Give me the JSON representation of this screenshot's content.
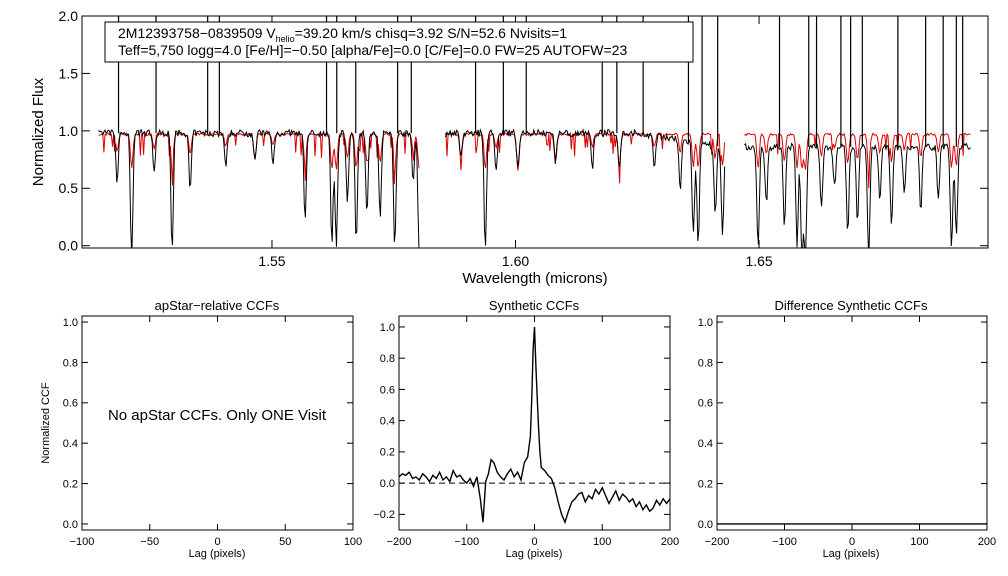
{
  "chart_data": [
    {
      "type": "line",
      "id": "spectrum",
      "xlabel": "Wavelength (microns)",
      "ylabel": "Normalized Flux",
      "xlim": [
        1.511,
        1.697
      ],
      "ylim": [
        -0.02,
        2.0
      ],
      "xticks": [
        1.55,
        1.6,
        1.65
      ],
      "xtick_labels": [
        "1.55",
        "1.60",
        "1.65"
      ],
      "yticks": [
        0.0,
        0.5,
        1.0,
        1.5,
        2.0
      ],
      "ytick_labels": [
        "0.0",
        "0.5",
        "1.0",
        "1.5",
        "2.0"
      ],
      "annotation": {
        "line1_prefix": "2M12393758−0839509  V",
        "line1_sub": "helio",
        "line1_rest": "=39.20 km/s  chisq=3.92  S/N=52.6  Nvisits=1",
        "line2": "Teff=5,750 logg=4.0 [Fe/H]=−0.50 [alpha/Fe]=0.0 [C/Fe]=0.0 FW=25 AUTOFW=23"
      },
      "segments": [
        {
          "start": 1.5144,
          "end": 1.5804
        },
        {
          "start": 1.5855,
          "end": 1.643
        },
        {
          "start": 1.647,
          "end": 1.6935
        }
      ],
      "observed_drift": [
        {
          "x": 1.625,
          "y": 0.0
        },
        {
          "x": 1.633,
          "y": -0.05
        },
        {
          "x": 1.638,
          "y": -0.1
        },
        {
          "x": 1.643,
          "y": -0.12
        }
      ],
      "spikes_up": [
        1.5185,
        1.5262,
        1.5368,
        1.5392,
        1.5612,
        1.5633,
        1.5672,
        1.5758,
        1.5786,
        1.5918,
        1.5975,
        1.6022,
        1.6178,
        1.6208,
        1.6262,
        1.6355,
        1.6383,
        1.6415,
        1.6542,
        1.6602,
        1.6618,
        1.6668,
        1.6688,
        1.6712,
        1.6785,
        1.6842,
        1.6878,
        1.6905,
        1.6918
      ],
      "absorption_lines": [
        {
          "x": 1.5182,
          "depth": 0.42,
          "c": "k"
        },
        {
          "x": 1.5212,
          "depth": 1.1,
          "c": "k"
        },
        {
          "x": 1.5258,
          "depth": 0.35,
          "c": "k"
        },
        {
          "x": 1.5295,
          "depth": 1.0,
          "c": "k"
        },
        {
          "x": 1.5332,
          "depth": 0.5,
          "c": "k"
        },
        {
          "x": 1.5405,
          "depth": 0.3,
          "c": "k"
        },
        {
          "x": 1.5465,
          "depth": 0.22,
          "c": "r"
        },
        {
          "x": 1.5502,
          "depth": 0.28,
          "c": "k"
        },
        {
          "x": 1.5568,
          "depth": 0.75,
          "c": "k"
        },
        {
          "x": 1.5623,
          "depth": 1.0,
          "c": "k"
        },
        {
          "x": 1.5632,
          "depth": 1.0,
          "c": "k"
        },
        {
          "x": 1.5655,
          "depth": 0.6,
          "c": "k"
        },
        {
          "x": 1.5673,
          "depth": 0.95,
          "c": "k"
        },
        {
          "x": 1.5695,
          "depth": 0.7,
          "c": "k"
        },
        {
          "x": 1.5722,
          "depth": 0.72,
          "c": "k"
        },
        {
          "x": 1.5752,
          "depth": 1.0,
          "c": "k"
        },
        {
          "x": 1.579,
          "depth": 0.4,
          "c": "k"
        },
        {
          "x": 1.5802,
          "depth": 1.0,
          "c": "k"
        },
        {
          "x": 1.5888,
          "depth": 0.22,
          "c": "r"
        },
        {
          "x": 1.5938,
          "depth": 1.0,
          "c": "k"
        },
        {
          "x": 1.596,
          "depth": 0.35,
          "c": "k"
        },
        {
          "x": 1.6005,
          "depth": 0.32,
          "c": "r"
        },
        {
          "x": 1.6082,
          "depth": 0.25,
          "c": "r"
        },
        {
          "x": 1.6158,
          "depth": 0.3,
          "c": "k"
        },
        {
          "x": 1.6213,
          "depth": 0.28,
          "c": "r"
        },
        {
          "x": 1.6285,
          "depth": 0.3,
          "c": "k"
        },
        {
          "x": 1.6338,
          "depth": 0.45,
          "c": "k"
        },
        {
          "x": 1.6365,
          "depth": 0.8,
          "c": "k"
        },
        {
          "x": 1.6375,
          "depth": 0.9,
          "c": "k"
        },
        {
          "x": 1.641,
          "depth": 0.6,
          "c": "k"
        },
        {
          "x": 1.6425,
          "depth": 0.8,
          "c": "k"
        },
        {
          "x": 1.6498,
          "depth": 0.9,
          "c": "k"
        },
        {
          "x": 1.6515,
          "depth": 0.5,
          "c": "k"
        },
        {
          "x": 1.6552,
          "depth": 0.7,
          "c": "k"
        },
        {
          "x": 1.6578,
          "depth": 0.85,
          "c": "k"
        },
        {
          "x": 1.6588,
          "depth": 0.95,
          "c": "k"
        },
        {
          "x": 1.6595,
          "depth": 1.0,
          "c": "k"
        },
        {
          "x": 1.6628,
          "depth": 0.55,
          "c": "k"
        },
        {
          "x": 1.6655,
          "depth": 0.35,
          "c": "k"
        },
        {
          "x": 1.6682,
          "depth": 0.75,
          "c": "k"
        },
        {
          "x": 1.6702,
          "depth": 0.65,
          "c": "k"
        },
        {
          "x": 1.6725,
          "depth": 1.0,
          "c": "k"
        },
        {
          "x": 1.6748,
          "depth": 0.5,
          "c": "k"
        },
        {
          "x": 1.6772,
          "depth": 0.7,
          "c": "k"
        },
        {
          "x": 1.6798,
          "depth": 0.4,
          "c": "k"
        },
        {
          "x": 1.6832,
          "depth": 0.55,
          "c": "k"
        },
        {
          "x": 1.6868,
          "depth": 0.45,
          "c": "k"
        },
        {
          "x": 1.6895,
          "depth": 0.9,
          "c": "k"
        },
        {
          "x": 1.6905,
          "depth": 0.8,
          "c": "k"
        }
      ],
      "series": [
        {
          "name": "observed",
          "color": "#000000",
          "continuum": 0.98
        },
        {
          "name": "synthetic",
          "color": "#dd0000",
          "continuum": 0.97
        }
      ]
    },
    {
      "type": "line",
      "id": "apstar_ccf",
      "title": "apStar−relative CCFs",
      "xlabel": "Lag (pixels)",
      "ylabel": "Normalized CCF",
      "xlim": [
        -100,
        100
      ],
      "ylim": [
        -0.03,
        1.03
      ],
      "xticks": [
        -100,
        -50,
        0,
        50,
        100
      ],
      "xtick_labels": [
        "−100",
        "−50",
        "0",
        "50",
        "100"
      ],
      "yticks": [
        0.0,
        0.2,
        0.4,
        0.6,
        0.8,
        1.0
      ],
      "ytick_labels": [
        "0.0",
        "0.2",
        "0.4",
        "0.6",
        "0.8",
        "1.0"
      ],
      "note": "No apStar CCFs.  Only ONE Visit",
      "series": []
    },
    {
      "type": "line",
      "id": "synthetic_ccf",
      "title": "Synthetic CCFs",
      "xlabel": "Lag (pixels)",
      "xlim": [
        -200,
        200
      ],
      "ylim": [
        -0.3,
        1.07
      ],
      "xticks": [
        -200,
        -100,
        0,
        100,
        200
      ],
      "xtick_labels": [
        "−200",
        "−100",
        "0",
        "100",
        "200"
      ],
      "yticks": [
        -0.2,
        0.0,
        0.2,
        0.4,
        0.6,
        0.8,
        1.0
      ],
      "ytick_labels": [
        "−0.2",
        "0.0",
        "0.2",
        "0.4",
        "0.6",
        "0.8",
        "1.0"
      ],
      "zero_line": 0.0,
      "series": [
        {
          "name": "CCF",
          "x": [
            -200,
            -195,
            -190,
            -185,
            -180,
            -175,
            -170,
            -165,
            -160,
            -155,
            -150,
            -145,
            -140,
            -135,
            -130,
            -125,
            -120,
            -115,
            -110,
            -105,
            -100,
            -95,
            -90,
            -85,
            -80,
            -76,
            -72,
            -68,
            -64,
            -60,
            -55,
            -50,
            -45,
            -40,
            -35,
            -30,
            -25,
            -20,
            -15,
            -10,
            -6,
            -4,
            -2,
            0,
            2,
            4,
            6,
            8,
            10,
            15,
            20,
            25,
            30,
            35,
            40,
            45,
            50,
            55,
            60,
            65,
            70,
            75,
            80,
            85,
            90,
            95,
            100,
            105,
            110,
            115,
            120,
            125,
            130,
            135,
            140,
            145,
            150,
            155,
            160,
            165,
            170,
            175,
            180,
            185,
            190,
            195,
            200
          ],
          "y": [
            0.04,
            0.06,
            0.05,
            0.07,
            0.03,
            0.04,
            0.02,
            0.06,
            0.04,
            0.01,
            0.05,
            0.03,
            0.07,
            0.02,
            0.04,
            0.01,
            0.08,
            0.04,
            0.05,
            0.02,
            0.0,
            0.03,
            -0.02,
            0.04,
            -0.1,
            -0.25,
            0.01,
            0.06,
            0.15,
            0.13,
            0.07,
            0.04,
            0.02,
            0.06,
            0.09,
            0.04,
            0.07,
            0.02,
            0.13,
            0.17,
            0.3,
            0.55,
            0.85,
            1.0,
            0.75,
            0.55,
            0.35,
            0.2,
            0.1,
            0.08,
            0.05,
            0.03,
            -0.03,
            -0.12,
            -0.2,
            -0.25,
            -0.18,
            -0.12,
            -0.1,
            -0.07,
            -0.06,
            -0.12,
            -0.08,
            -0.1,
            -0.04,
            -0.07,
            -0.03,
            -0.08,
            -0.13,
            -0.09,
            -0.05,
            -0.11,
            -0.07,
            -0.09,
            -0.12,
            -0.1,
            -0.15,
            -0.12,
            -0.17,
            -0.14,
            -0.18,
            -0.16,
            -0.11,
            -0.14,
            -0.1,
            -0.13,
            -0.1
          ]
        }
      ]
    },
    {
      "type": "line",
      "id": "difference_ccf",
      "title": "Difference Synthetic CCFs",
      "xlabel": "Lag (pixels)",
      "xlim": [
        -200,
        200
      ],
      "ylim": [
        -0.03,
        1.03
      ],
      "xticks": [
        -200,
        -100,
        0,
        100,
        200
      ],
      "xtick_labels": [
        "−200",
        "−100",
        "0",
        "100",
        "200"
      ],
      "yticks": [
        0.0,
        0.2,
        0.4,
        0.6,
        0.8,
        1.0
      ],
      "ytick_labels": [
        "0.0",
        "0.2",
        "0.4",
        "0.6",
        "0.8",
        "1.0"
      ],
      "series": [
        {
          "name": "difference",
          "x": [
            -200,
            200
          ],
          "y": [
            0.0,
            0.0
          ]
        }
      ]
    }
  ]
}
